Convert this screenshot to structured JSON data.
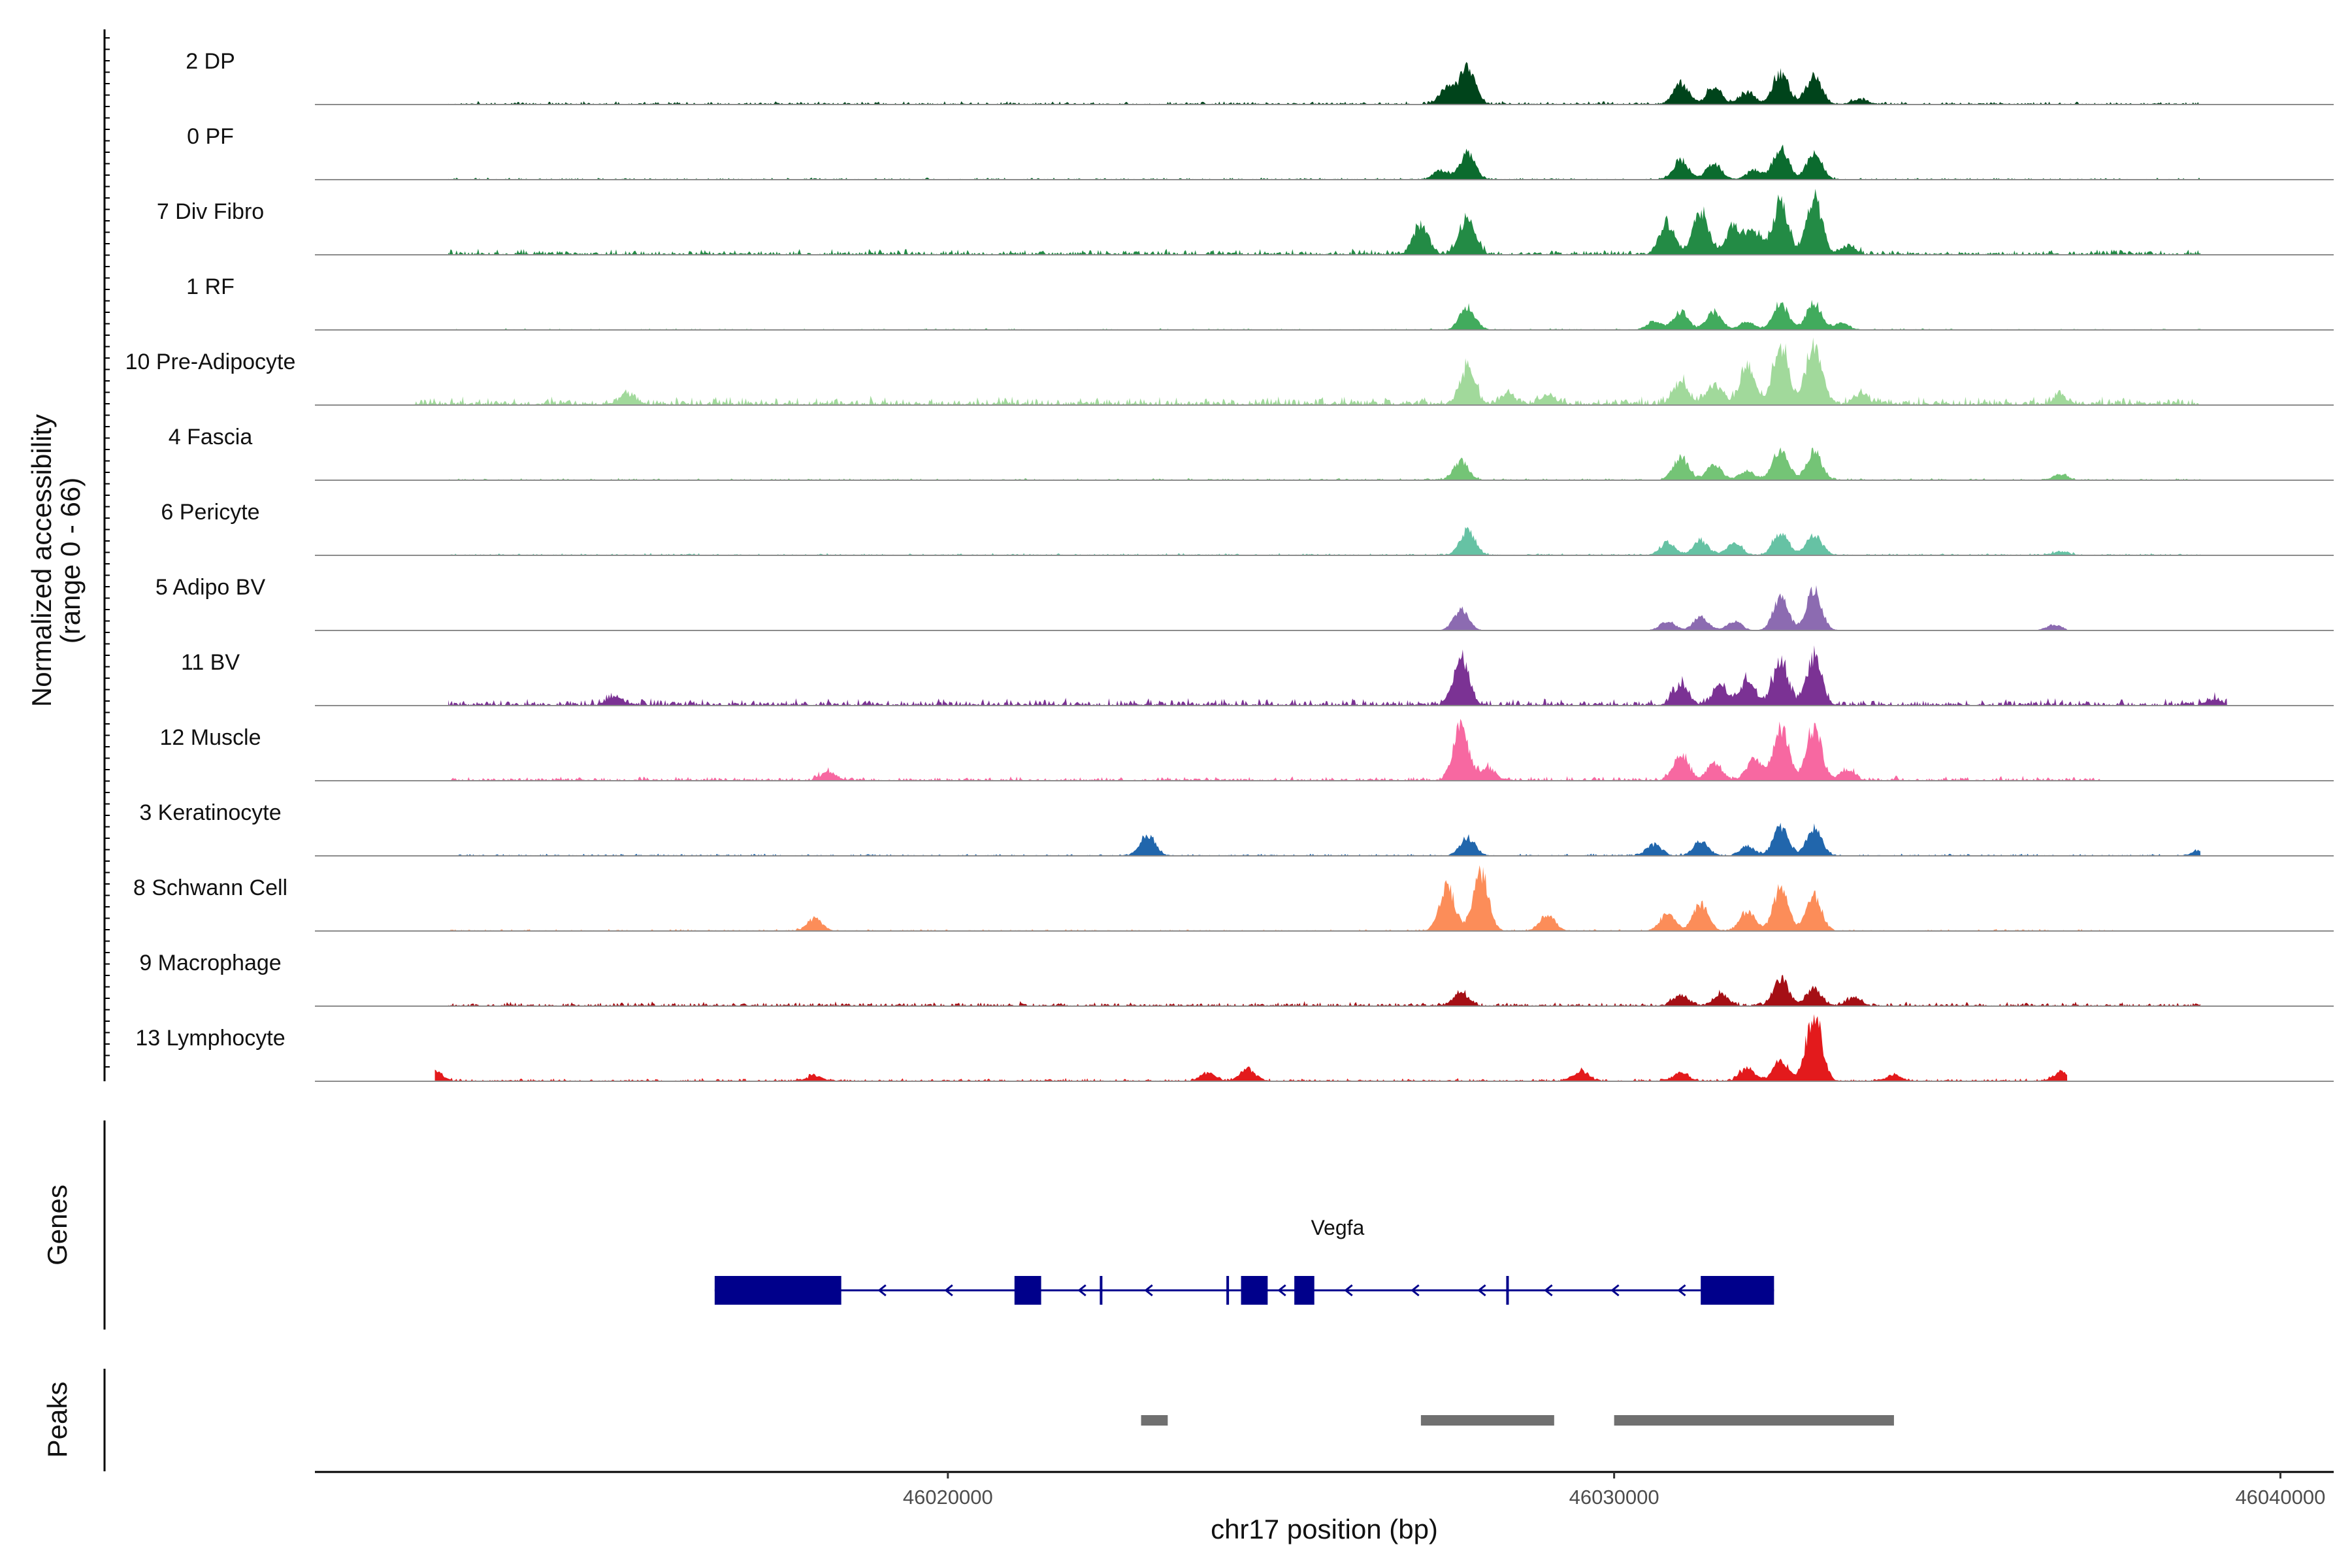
{
  "chart_data": {
    "type": "area",
    "title": "",
    "ylabel": "Normalized accessibility\n(range 0 - 66)",
    "y_range_text": "(range 0 - 66)",
    "ylim": [
      0,
      66
    ],
    "xlabel": "chr17 position (bp)",
    "chromosome": "chr17",
    "xlim": [
      46010500,
      46040800
    ],
    "x_ticks": [
      46020000,
      46030000,
      46040000
    ],
    "x_tick_labels": [
      "46020000",
      "46030000",
      "46040000"
    ],
    "series": [
      {
        "name": "2 DP",
        "color": "#00441b",
        "scale": 0.95,
        "bg": 1.2,
        "x_extent": [
          46012500,
          46038800
        ],
        "peaks": [
          [
            46027800,
            38
          ],
          [
            46027500,
            18
          ],
          [
            46031000,
            22
          ],
          [
            46031500,
            16
          ],
          [
            46032500,
            32
          ],
          [
            46033000,
            28
          ],
          [
            46032000,
            12
          ],
          [
            46033700,
            5
          ]
        ]
      },
      {
        "name": "0 PF",
        "color": "#0b6b2e",
        "scale": 0.85,
        "bg": 0.8,
        "x_extent": [
          46012500,
          46038800
        ],
        "peaks": [
          [
            46027800,
            30
          ],
          [
            46027400,
            10
          ],
          [
            46031000,
            22
          ],
          [
            46031500,
            18
          ],
          [
            46032500,
            36
          ],
          [
            46033000,
            30
          ],
          [
            46032100,
            10
          ]
        ]
      },
      {
        "name": "7 Div Fibro",
        "color": "#238b45",
        "scale": 1.0,
        "bg": 2.0,
        "x_extent": [
          46012500,
          46038800
        ],
        "peaks": [
          [
            46027100,
            28
          ],
          [
            46027800,
            36
          ],
          [
            46030800,
            30
          ],
          [
            46031300,
            40
          ],
          [
            46031800,
            26
          ],
          [
            46032500,
            48
          ],
          [
            46033000,
            56
          ],
          [
            46032100,
            22
          ],
          [
            46033500,
            8
          ]
        ]
      },
      {
        "name": "1 RF",
        "color": "#41ab5d",
        "scale": 0.8,
        "bg": 0.6,
        "x_extent": [
          46012500,
          46038800
        ],
        "peaks": [
          [
            46027800,
            28
          ],
          [
            46030600,
            10
          ],
          [
            46031000,
            22
          ],
          [
            46031500,
            22
          ],
          [
            46032500,
            32
          ],
          [
            46033000,
            32
          ],
          [
            46032000,
            10
          ],
          [
            46033400,
            8
          ]
        ]
      },
      {
        "name": "10 Pre-Adipocyte",
        "color": "#a1d99b",
        "scale": 1.0,
        "bg": 3.0,
        "x_extent": [
          46012000,
          46038800
        ],
        "peaks": [
          [
            46015200,
            10
          ],
          [
            46027800,
            34
          ],
          [
            46028400,
            10
          ],
          [
            46029000,
            8
          ],
          [
            46031000,
            20
          ],
          [
            46031500,
            20
          ],
          [
            46032000,
            36
          ],
          [
            46032500,
            56
          ],
          [
            46033000,
            60
          ],
          [
            46033700,
            10
          ],
          [
            46036700,
            8
          ]
        ]
      },
      {
        "name": "4 Fascia",
        "color": "#74c476",
        "scale": 0.85,
        "bg": 0.8,
        "x_extent": [
          46012500,
          46038800
        ],
        "peaks": [
          [
            46027700,
            22
          ],
          [
            46031000,
            26
          ],
          [
            46031500,
            18
          ],
          [
            46032500,
            36
          ],
          [
            46033000,
            32
          ],
          [
            46032000,
            10
          ],
          [
            46036700,
            6
          ]
        ]
      },
      {
        "name": "6 Pericyte",
        "color": "#66c2a4",
        "scale": 0.85,
        "bg": 0.8,
        "x_extent": [
          46012500,
          46038800
        ],
        "peaks": [
          [
            46027800,
            28
          ],
          [
            46030800,
            14
          ],
          [
            46031300,
            16
          ],
          [
            46031800,
            14
          ],
          [
            46032500,
            26
          ],
          [
            46033000,
            24
          ],
          [
            46036700,
            4
          ]
        ]
      },
      {
        "name": "5 Adipo BV",
        "color": "#8c6bb1",
        "scale": 0.9,
        "bg": 0.2,
        "x_extent": [
          46026500,
          46036800
        ],
        "peaks": [
          [
            46027700,
            22
          ],
          [
            46030800,
            10
          ],
          [
            46031300,
            14
          ],
          [
            46031800,
            10
          ],
          [
            46032500,
            36
          ],
          [
            46033000,
            44
          ],
          [
            46036600,
            6
          ]
        ]
      },
      {
        "name": "11 BV",
        "color": "#7b3294",
        "scale": 1.0,
        "bg": 2.5,
        "x_extent": [
          46012500,
          46039200
        ],
        "peaks": [
          [
            46015000,
            8
          ],
          [
            46027700,
            48
          ],
          [
            46031000,
            20
          ],
          [
            46031600,
            18
          ],
          [
            46032000,
            24
          ],
          [
            46032500,
            42
          ],
          [
            46033000,
            46
          ],
          [
            46039000,
            6
          ]
        ]
      },
      {
        "name": "12 Muscle",
        "color": "#f768a1",
        "scale": 1.0,
        "bg": 1.5,
        "x_extent": [
          46012500,
          46037300
        ],
        "peaks": [
          [
            46018200,
            8
          ],
          [
            46027700,
            52
          ],
          [
            46028100,
            12
          ],
          [
            46031000,
            26
          ],
          [
            46031500,
            16
          ],
          [
            46032100,
            20
          ],
          [
            46032500,
            50
          ],
          [
            46033000,
            52
          ],
          [
            46033500,
            10
          ]
        ]
      },
      {
        "name": "3 Keratinocyte",
        "color": "#2166ac",
        "scale": 0.9,
        "bg": 0.8,
        "x_extent": [
          46012500,
          46038800
        ],
        "peaks": [
          [
            46023000,
            22
          ],
          [
            46027800,
            20
          ],
          [
            46030600,
            12
          ],
          [
            46031300,
            16
          ],
          [
            46032000,
            10
          ],
          [
            46032500,
            30
          ],
          [
            46033000,
            30
          ],
          [
            46038800,
            6
          ]
        ]
      },
      {
        "name": "8 Schwann Cell",
        "color": "#fc8d59",
        "scale": 1.0,
        "bg": 0.6,
        "x_extent": [
          46012500,
          46037500
        ],
        "peaks": [
          [
            46018000,
            12
          ],
          [
            46027500,
            42
          ],
          [
            46028000,
            58
          ],
          [
            46029000,
            16
          ],
          [
            46030800,
            16
          ],
          [
            46031300,
            26
          ],
          [
            46032000,
            18
          ],
          [
            46032500,
            40
          ],
          [
            46033000,
            34
          ]
        ]
      },
      {
        "name": "9 Macrophage",
        "color": "#a50f15",
        "scale": 1.0,
        "bg": 1.5,
        "x_extent": [
          46012500,
          46038800
        ],
        "peaks": [
          [
            46027700,
            12
          ],
          [
            46031000,
            10
          ],
          [
            46031600,
            12
          ],
          [
            46032500,
            26
          ],
          [
            46033000,
            16
          ],
          [
            46033600,
            8
          ]
        ]
      },
      {
        "name": "13 Lymphocyte",
        "color": "#e31a1c",
        "scale": 1.0,
        "bg": 1.0,
        "x_extent": [
          46012300,
          46036800
        ],
        "peaks": [
          [
            46012300,
            10
          ],
          [
            46018000,
            5
          ],
          [
            46023900,
            8
          ],
          [
            46024500,
            12
          ],
          [
            46029500,
            10
          ],
          [
            46031000,
            8
          ],
          [
            46032000,
            12
          ],
          [
            46032500,
            20
          ],
          [
            46033000,
            66
          ],
          [
            46034200,
            6
          ],
          [
            46036700,
            8
          ]
        ]
      }
    ],
    "genes": {
      "label": "Genes",
      "name": "Vegfa",
      "strand": "-",
      "span": [
        46016500,
        46032400
      ],
      "exons": [
        [
          46016500,
          46018400
        ],
        [
          46021000,
          46021400
        ],
        [
          46024400,
          46024800
        ],
        [
          46025200,
          46025500
        ],
        [
          46031300,
          46032400
        ]
      ],
      "thin_marks": [
        46022300,
        46024200,
        46028400
      ],
      "arrow_positions": [
        46019000,
        46020000,
        46022000,
        46023000,
        46025000,
        46026000,
        46027000,
        46028000,
        46029000,
        46030000,
        46031000
      ]
    },
    "peaks_track": {
      "label": "Peaks",
      "regions": [
        [
          46022900,
          46023300
        ],
        [
          46027100,
          46029100
        ],
        [
          46030000,
          46034200
        ]
      ]
    }
  },
  "colors": {
    "baseline": "#8c8c8c",
    "gene": "#00008b",
    "peak": "#707070",
    "axis": "#000000"
  }
}
